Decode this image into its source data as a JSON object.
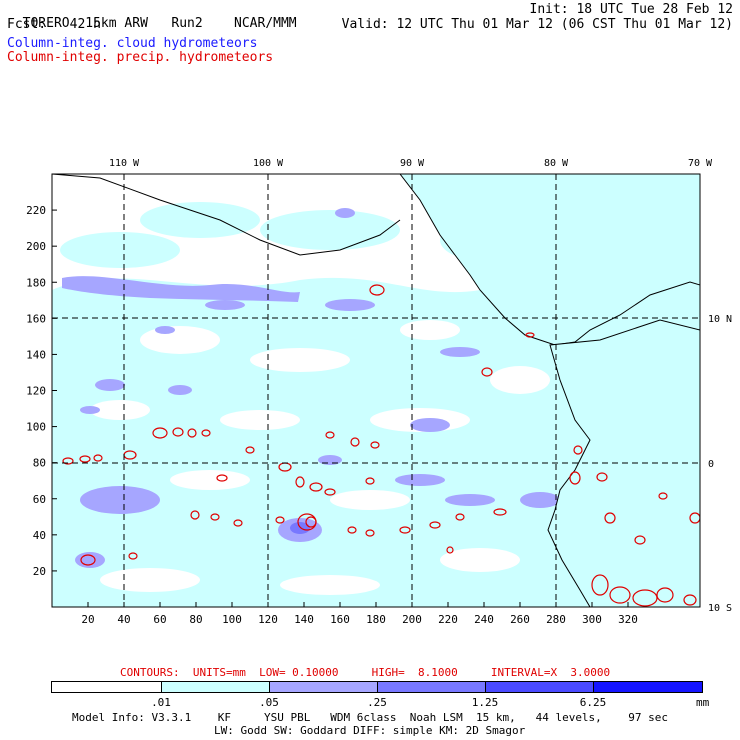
{
  "header": {
    "model": "TORERO",
    "resolution": "15km ARW",
    "run": "Run2",
    "org": "NCAR/MMM",
    "init": "Init: 18 UTC Tue 28 Feb 12",
    "fcst_label": "Fcst:",
    "fcst_value": "42 h",
    "valid": "Valid: 12 UTC Thu 01 Mar 12 (06 CST Thu 01 Mar 12)"
  },
  "legend": {
    "cloud": "Column-integ. cloud hydrometeors",
    "precip": "Column-integ. precip. hydrometeors"
  },
  "axes": {
    "lon_labels": [
      "110 W",
      "100 W",
      "90 W",
      "80 W",
      "70 W"
    ],
    "lat_labels": [
      "10 N",
      "0",
      "10 S"
    ],
    "x_ticks": [
      "20",
      "40",
      "60",
      "80",
      "100",
      "120",
      "140",
      "160",
      "180",
      "200",
      "220",
      "240",
      "260",
      "280",
      "300",
      "320"
    ],
    "y_ticks": [
      "20",
      "40",
      "60",
      "80",
      "100",
      "120",
      "140",
      "160",
      "180",
      "200",
      "220"
    ]
  },
  "contours": {
    "text": "CONTOURS:  UNITS=mm  LOW= 0.10000     HIGH=  8.1000     INTERVAL=X  3.0000"
  },
  "colorbar": {
    "labels": [
      ".01",
      ".05",
      ".25",
      "1.25",
      "6.25"
    ],
    "unit": "mm",
    "colors": [
      "#ffffff",
      "#ccffff",
      "#a6a6ff",
      "#7878ff",
      "#4a4aff",
      "#1414ff"
    ]
  },
  "footer": {
    "line1": "Model Info: V3.3.1    KF     YSU PBL   WDM 6class  Noah LSM  15 km,   44 levels,    97 sec",
    "line2": "LW: Godd SW: Goddard DIFF: simple KM: 2D Smagor"
  }
}
